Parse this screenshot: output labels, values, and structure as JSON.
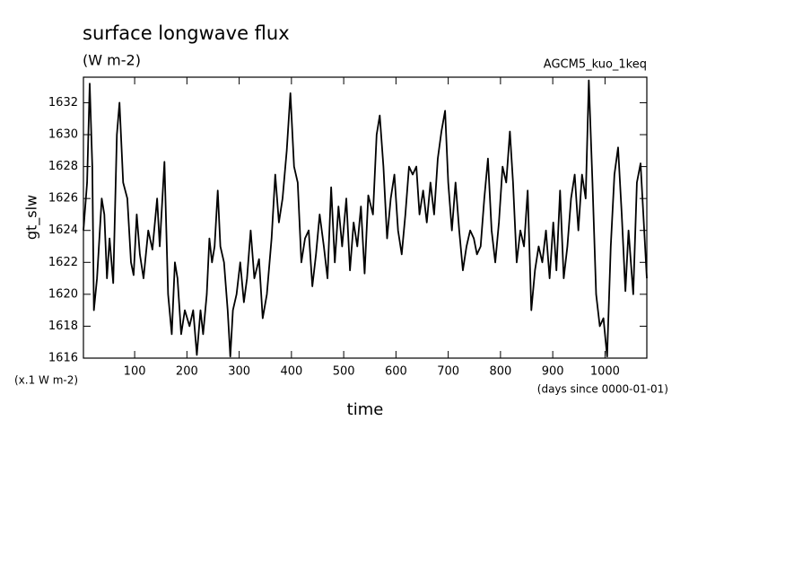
{
  "chart_data": {
    "type": "line",
    "title": "surface longwave flux",
    "subtitle": "(W m-2)",
    "run_label": "AGCM5_kuo_1keq",
    "y_label": "gt_slw",
    "y_unit_label": "(x.1 W m-2)",
    "x_label": "time",
    "x_unit_label": "(days since 0000-01-01)",
    "color": "#000000",
    "xlim": [
      2,
      1080
    ],
    "ylim": [
      1616,
      1633.6
    ],
    "xticks": [
      100,
      200,
      300,
      400,
      500,
      600,
      700,
      800,
      900,
      1000
    ],
    "yticks": [
      1616,
      1618,
      1620,
      1622,
      1624,
      1626,
      1628,
      1630,
      1632
    ],
    "x": [
      2,
      9,
      14,
      19,
      22,
      28,
      37,
      42,
      47,
      52,
      59,
      66,
      71,
      78,
      86,
      93,
      98,
      104,
      110,
      117,
      126,
      134,
      143,
      148,
      157,
      164,
      171,
      177,
      182,
      189,
      196,
      205,
      212,
      219,
      226,
      231,
      238,
      243,
      248,
      253,
      259,
      264,
      271,
      278,
      283,
      288,
      295,
      302,
      309,
      315,
      322,
      329,
      338,
      345,
      353,
      362,
      369,
      376,
      383,
      391,
      398,
      405,
      412,
      419,
      426,
      433,
      440,
      447,
      454,
      462,
      469,
      476,
      483,
      490,
      497,
      505,
      512,
      519,
      526,
      533,
      540,
      547,
      556,
      563,
      569,
      576,
      583,
      590,
      597,
      604,
      611,
      618,
      625,
      632,
      639,
      645,
      652,
      659,
      666,
      673,
      680,
      687,
      694,
      700,
      707,
      714,
      721,
      728,
      735,
      742,
      749,
      755,
      762,
      769,
      776,
      783,
      790,
      797,
      804,
      811,
      818,
      824,
      831,
      838,
      845,
      852,
      859,
      866,
      873,
      880,
      887,
      894,
      901,
      907,
      914,
      921,
      928,
      935,
      942,
      949,
      956,
      963,
      969,
      976,
      983,
      990,
      997,
      1004,
      1011,
      1018,
      1025,
      1032,
      1039,
      1045,
      1054,
      1061,
      1068,
      1075,
      1080
    ],
    "values": [
      1624,
      1627,
      1633.2,
      1628,
      1619,
      1621,
      1626,
      1625,
      1621,
      1623.5,
      1620.7,
      1630,
      1632,
      1627,
      1626,
      1622,
      1621.2,
      1625,
      1622.5,
      1621,
      1624,
      1622.8,
      1626,
      1623,
      1628.3,
      1620,
      1617.5,
      1622,
      1621,
      1617.5,
      1619,
      1618,
      1619,
      1616.2,
      1619,
      1617.5,
      1620,
      1623.5,
      1622,
      1623,
      1626.5,
      1623,
      1622,
      1619,
      1616.1,
      1619,
      1620,
      1622,
      1619.5,
      1621,
      1624,
      1621,
      1622.2,
      1618.5,
      1620,
      1623.5,
      1627.5,
      1624.5,
      1626,
      1629,
      1632.6,
      1628,
      1627,
      1622,
      1623.5,
      1624,
      1620.5,
      1622.5,
      1625,
      1623,
      1621,
      1626.7,
      1622,
      1625.5,
      1623,
      1626,
      1621.5,
      1624.5,
      1623,
      1625.5,
      1621.3,
      1626.2,
      1625,
      1630,
      1631.2,
      1628,
      1623.5,
      1626,
      1627.5,
      1624,
      1622.5,
      1625,
      1628,
      1627.5,
      1628,
      1625,
      1626.5,
      1624.5,
      1627,
      1625,
      1628.5,
      1630.2,
      1631.5,
      1627,
      1624,
      1627,
      1624,
      1621.5,
      1623,
      1624,
      1623.5,
      1622.5,
      1623,
      1626,
      1628.5,
      1624,
      1622,
      1624.5,
      1628,
      1627,
      1630.2,
      1627,
      1622,
      1624,
      1623,
      1626.5,
      1619,
      1621.5,
      1623,
      1622,
      1624,
      1621,
      1624.5,
      1621.5,
      1626.5,
      1621,
      1623,
      1626,
      1627.5,
      1624,
      1627.5,
      1626,
      1633.4,
      1627,
      1620,
      1618,
      1618.5,
      1616.1,
      1623,
      1627.5,
      1629.2,
      1625,
      1620.2,
      1624,
      1620,
      1627,
      1628.2,
      1624,
      1621
    ]
  }
}
